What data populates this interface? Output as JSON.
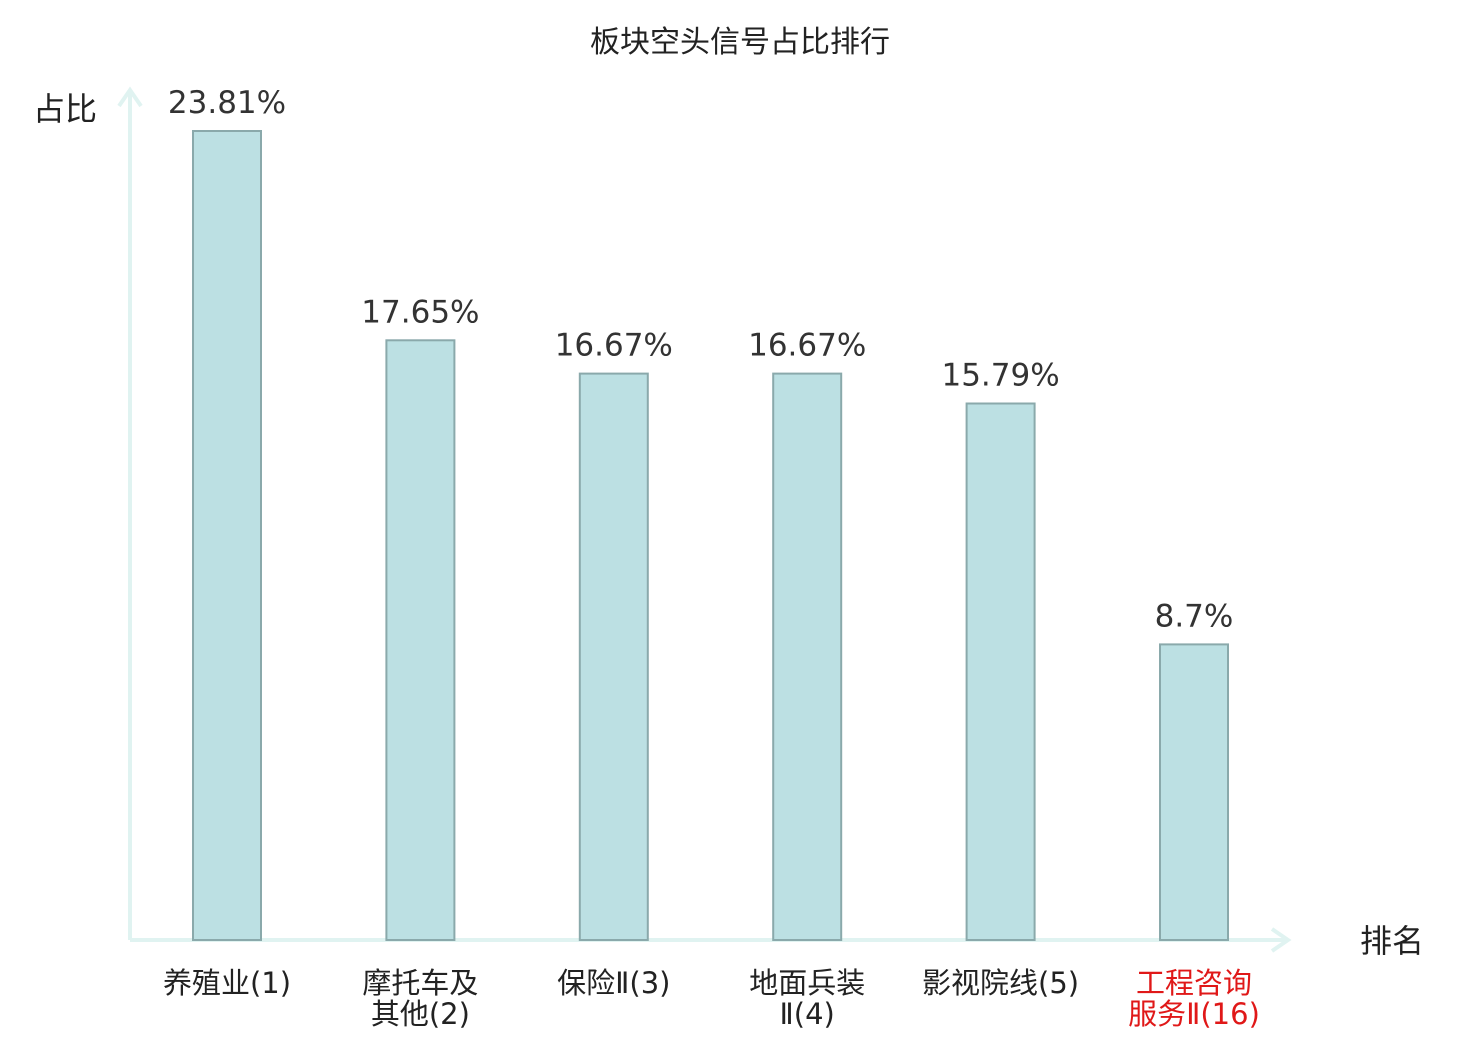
{
  "chart_data": {
    "type": "bar",
    "title": "板块空头信号占比排行",
    "ylabel": "占比",
    "xlabel": "排名",
    "categories": [
      [
        "养殖业(1)"
      ],
      [
        "摩托车及",
        "其他(2)"
      ],
      [
        "保险Ⅱ(3)"
      ],
      [
        "地面兵装",
        "Ⅱ(4)"
      ],
      [
        "影视院线(5)"
      ],
      [
        "工程咨询",
        "服务Ⅱ(16)"
      ]
    ],
    "values": [
      23.81,
      17.65,
      16.67,
      16.67,
      15.79,
      8.7
    ],
    "value_labels": [
      "23.81%",
      "17.65%",
      "16.67%",
      "16.67%",
      "15.79%",
      "8.7%"
    ],
    "highlighted_index": 5,
    "ylim": [
      0,
      25
    ],
    "grid": false,
    "colors": {
      "bar_fill": "#bce0e3",
      "bar_stroke": "#8aa9ab",
      "axis": "#e0f3f1",
      "label_default": "#222222",
      "label_highlight": "#e01818"
    }
  }
}
